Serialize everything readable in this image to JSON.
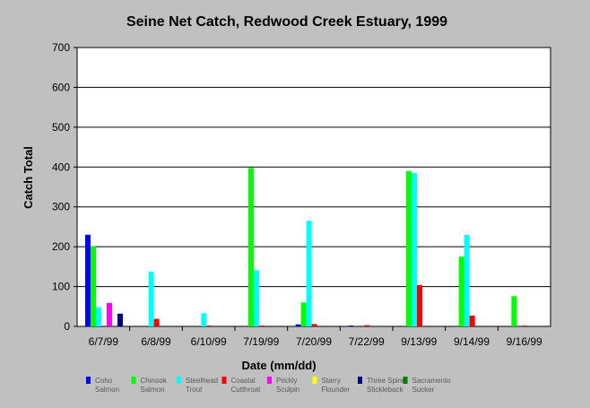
{
  "chart_data": {
    "type": "bar",
    "title": "Seine Net Catch, Redwood Creek Estuary, 1999",
    "xlabel": "Date (mm/dd)",
    "ylabel": "Catch Total",
    "ylim": [
      0,
      700
    ],
    "yticks": [
      0,
      100,
      200,
      300,
      400,
      500,
      600,
      700
    ],
    "grid": true,
    "legend_position": "bottom",
    "categories": [
      "6/7/99",
      "6/8/99",
      "6/10/99",
      "7/19/99",
      "7/20/99",
      "7/22/99",
      "9/13/99",
      "9/14/99",
      "9/16/99"
    ],
    "series": [
      {
        "name": "Coho Salmon",
        "legend_lines": [
          "Coho",
          "Salmon"
        ],
        "color": "#0000ff",
        "values": [
          230,
          0,
          0,
          0,
          5,
          2,
          0,
          0,
          0
        ]
      },
      {
        "name": "Chinook Salmon",
        "legend_lines": [
          "Chinook",
          "Salmon"
        ],
        "color": "#00ff00",
        "values": [
          201,
          0,
          0,
          398,
          60,
          0,
          390,
          175,
          76
        ]
      },
      {
        "name": "Steelhead Trout",
        "legend_lines": [
          "Steelhead",
          "Trout"
        ],
        "color": "#00ffff",
        "values": [
          48,
          137,
          33,
          141,
          265,
          0,
          385,
          230,
          0
        ]
      },
      {
        "name": "Coastal Cutthroat",
        "legend_lines": [
          "Coastal",
          "Cutthroat"
        ],
        "color": "#ff0000",
        "values": [
          0,
          19,
          2,
          2,
          6,
          3,
          104,
          27,
          2
        ]
      },
      {
        "name": "Prickly Sculpin",
        "legend_lines": [
          "Prickly",
          "Sculpin"
        ],
        "color": "#ff00ff",
        "values": [
          59,
          0,
          0,
          0,
          0,
          0,
          0,
          0,
          0
        ]
      },
      {
        "name": "Starry Flounder",
        "legend_lines": [
          "Starry",
          "Flounder"
        ],
        "color": "#ffff00",
        "values": [
          0,
          0,
          0,
          0,
          0,
          0,
          0,
          0,
          0
        ]
      },
      {
        "name": "Three Spine Stickleback",
        "legend_lines": [
          "Three Spine",
          "Stickleback"
        ],
        "color": "#000080",
        "values": [
          32,
          0,
          0,
          0,
          0,
          0,
          0,
          0,
          0
        ]
      },
      {
        "name": "Sacramento Sucker",
        "legend_lines": [
          "Sacramento",
          "Sucker"
        ],
        "color": "#008000",
        "values": [
          0,
          0,
          0,
          0,
          0,
          0,
          0,
          0,
          0
        ]
      }
    ]
  }
}
